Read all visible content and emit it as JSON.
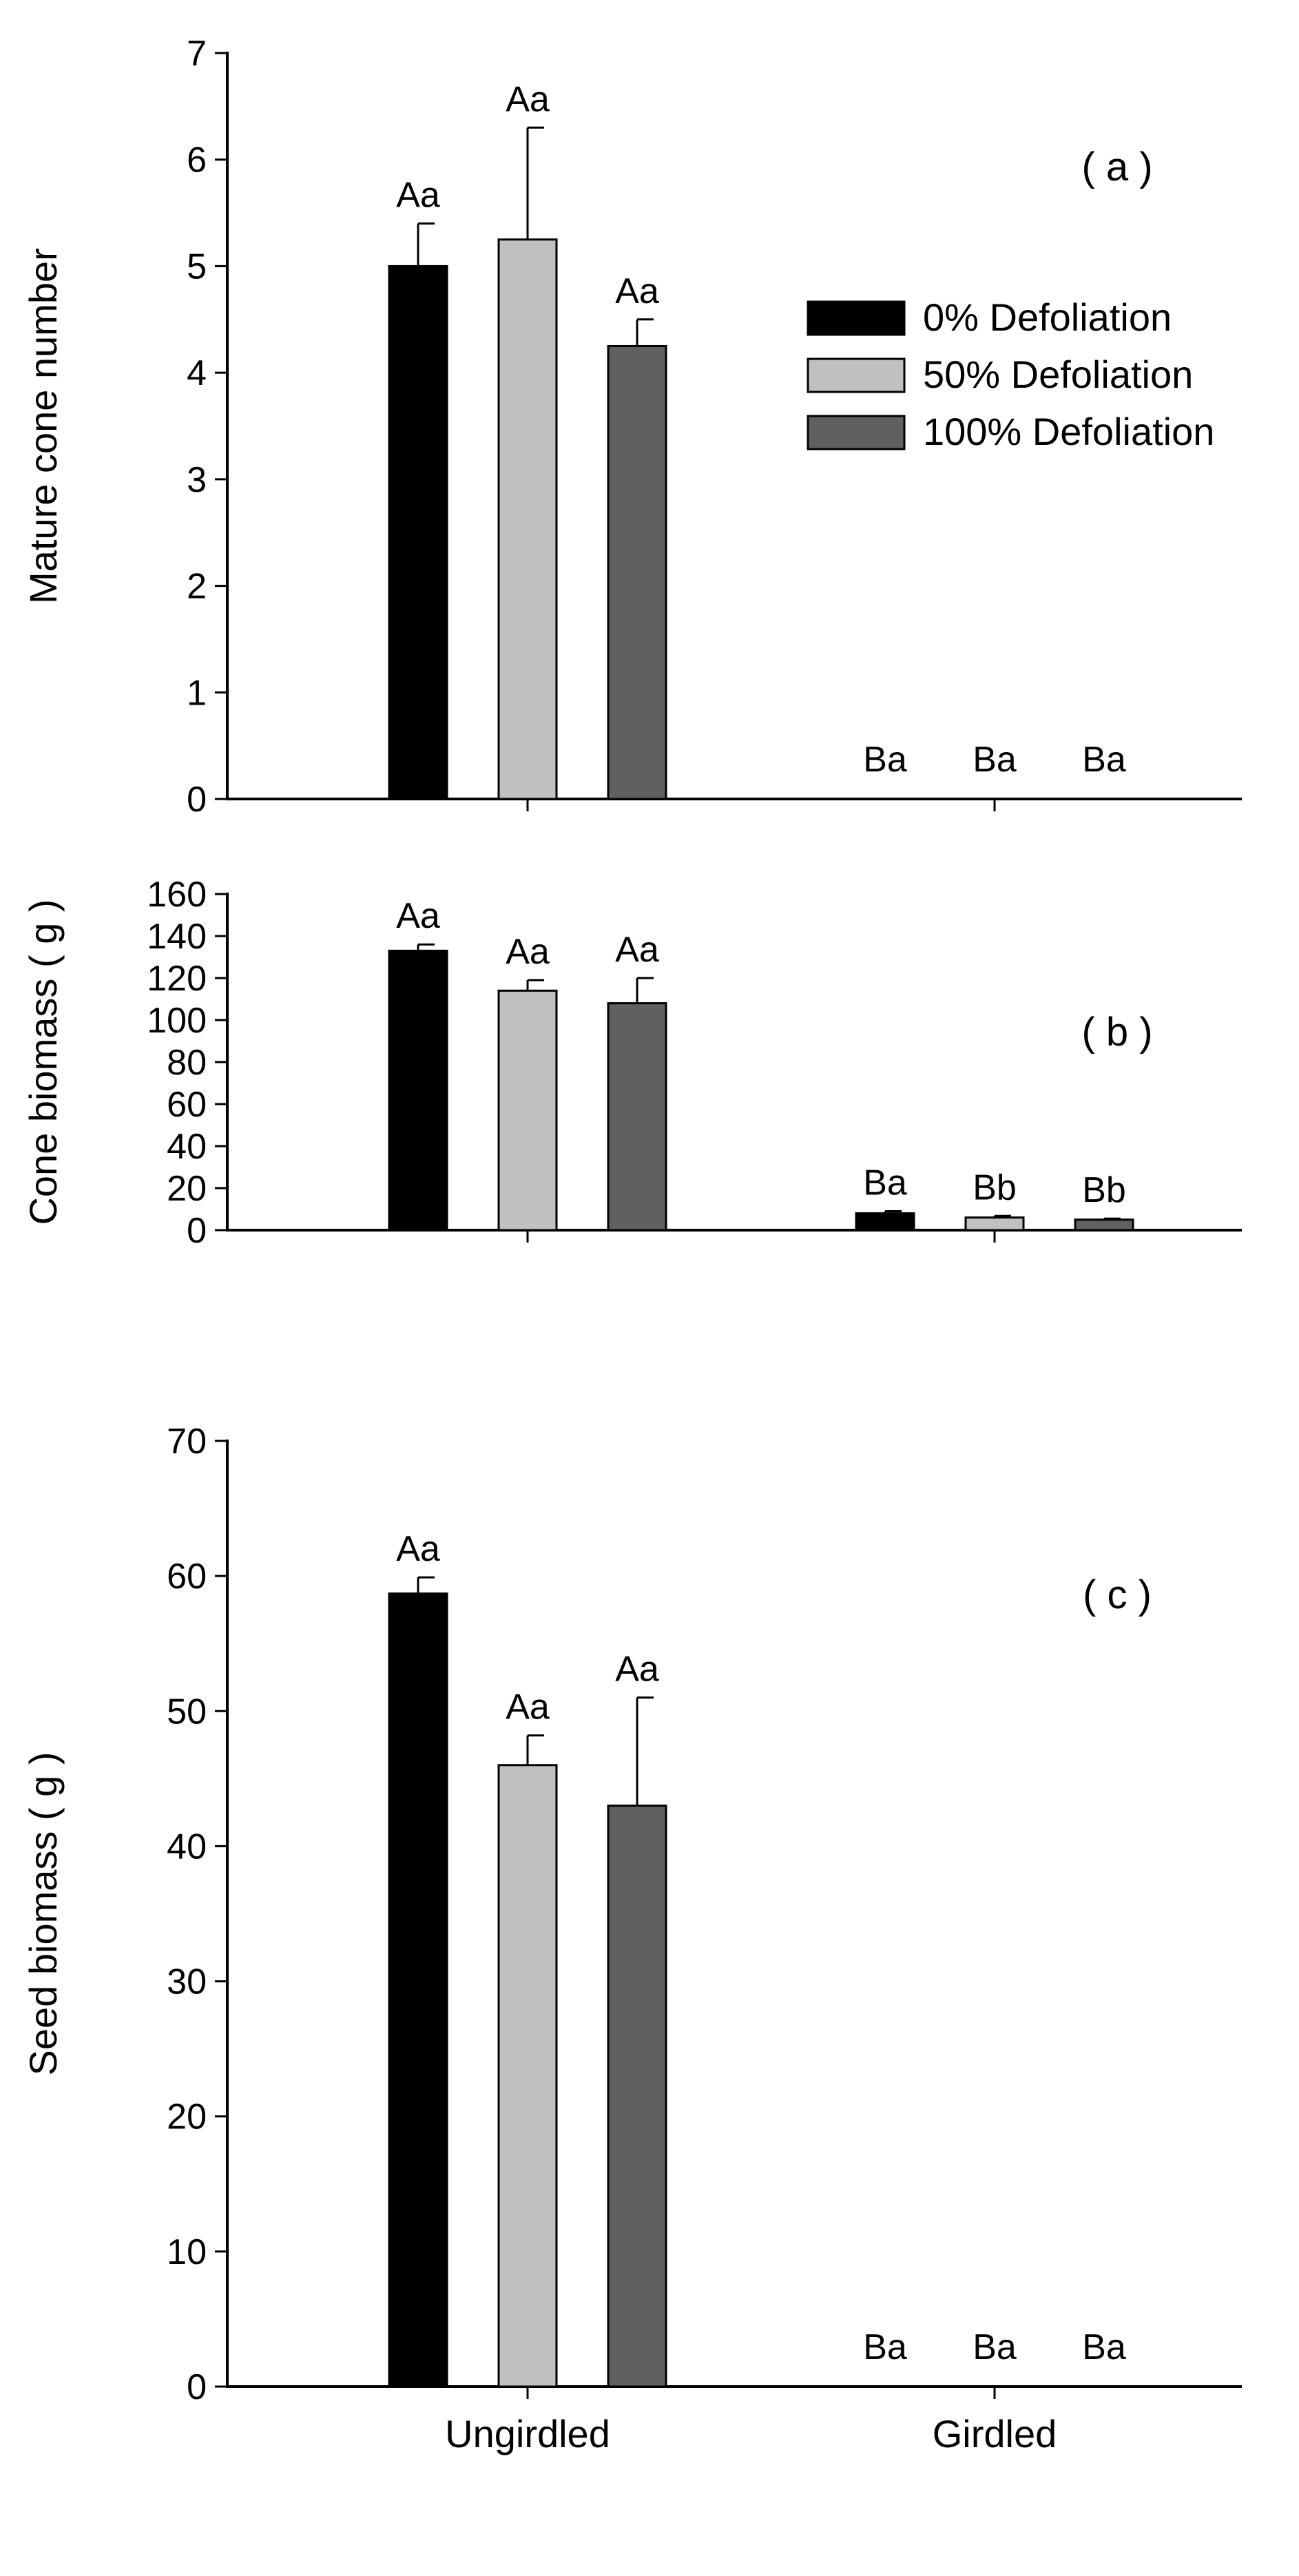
{
  "chart_data": [
    {
      "type": "bar",
      "panel_label": "( a )",
      "ylabel": "Mature cone number",
      "xlabel": "",
      "ylim": [
        0,
        7
      ],
      "yticks": [
        0,
        1,
        2,
        3,
        4,
        5,
        6,
        7
      ],
      "categories": [
        "Ungirdled",
        "Girdled"
      ],
      "show_category_labels": false,
      "legend": {
        "placement": "top-right",
        "entries": [
          "0% Defoliation",
          "50% Defoliation",
          "100% Defoliation"
        ]
      },
      "series": [
        {
          "name": "0% Defoliation",
          "color": "#000000",
          "values": [
            5.0,
            0
          ],
          "errors": [
            0.4,
            0
          ],
          "letters": [
            "Aa",
            "Ba"
          ]
        },
        {
          "name": "50% Defoliation",
          "color": "#c0c0c0",
          "values": [
            5.25,
            0
          ],
          "errors": [
            1.05,
            0
          ],
          "letters": [
            "Aa",
            "Ba"
          ]
        },
        {
          "name": "100% Defoliation",
          "color": "#606060",
          "values": [
            4.25,
            0
          ],
          "errors": [
            0.25,
            0
          ],
          "letters": [
            "Aa",
            "Ba"
          ]
        }
      ]
    },
    {
      "type": "bar",
      "panel_label": "( b )",
      "ylabel": "Cone biomass ( g )",
      "xlabel": "",
      "ylim": [
        0,
        160
      ],
      "yticks": [
        0,
        20,
        40,
        60,
        80,
        100,
        120,
        140,
        160
      ],
      "categories": [
        "Ungirdled",
        "Girdled"
      ],
      "show_category_labels": false,
      "series": [
        {
          "name": "0% Defoliation",
          "color": "#000000",
          "values": [
            133,
            8
          ],
          "errors": [
            3,
            1
          ],
          "letters": [
            "Aa",
            "Ba"
          ]
        },
        {
          "name": "50% Defoliation",
          "color": "#c0c0c0",
          "values": [
            114,
            6
          ],
          "errors": [
            5,
            0.8
          ],
          "letters": [
            "Aa",
            "Bb"
          ]
        },
        {
          "name": "100% Defoliation",
          "color": "#606060",
          "values": [
            108,
            5
          ],
          "errors": [
            12,
            0.5
          ],
          "letters": [
            "Aa",
            "Bb"
          ]
        }
      ]
    },
    {
      "type": "bar",
      "panel_label": "( c )",
      "ylabel": "Seed biomass ( g )",
      "xlabel": "",
      "ylim": [
        0,
        70
      ],
      "yticks": [
        0,
        10,
        20,
        30,
        40,
        50,
        60,
        70
      ],
      "categories": [
        "Ungirdled",
        "Girdled"
      ],
      "show_category_labels": true,
      "series": [
        {
          "name": "0% Defoliation",
          "color": "#000000",
          "values": [
            58.7,
            0
          ],
          "errors": [
            1.2,
            0
          ],
          "letters": [
            "Aa",
            "Ba"
          ]
        },
        {
          "name": "50% Defoliation",
          "color": "#c0c0c0",
          "values": [
            46,
            0
          ],
          "errors": [
            2.2,
            0
          ],
          "letters": [
            "Aa",
            "Ba"
          ]
        },
        {
          "name": "100% Defoliation",
          "color": "#606060",
          "values": [
            43,
            0
          ],
          "errors": [
            8,
            0
          ],
          "letters": [
            "Aa",
            "Ba"
          ]
        }
      ]
    }
  ]
}
